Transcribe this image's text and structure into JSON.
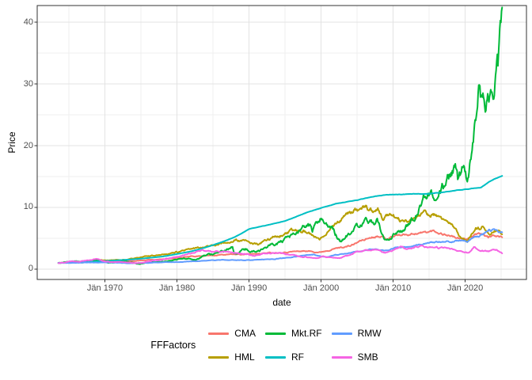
{
  "chart_data": {
    "type": "line",
    "title": "",
    "xlabel": "date",
    "ylabel": "Price",
    "legend_title": "FFFactors",
    "legend_position": "bottom",
    "grid": true,
    "xlim": [
      1960.6,
      2028.5
    ],
    "ylim": [
      -1.67,
      42.7
    ],
    "x_ticks": [
      {
        "year": 1970,
        "label": "Jän 1970"
      },
      {
        "year": 1980,
        "label": "Jän 1980"
      },
      {
        "year": 1990,
        "label": "Jän 1990"
      },
      {
        "year": 2000,
        "label": "Jän 2000"
      },
      {
        "year": 2010,
        "label": "Jän 2010"
      },
      {
        "year": 2020,
        "label": "Jän 2020"
      }
    ],
    "x_minor": [
      1965,
      1975,
      1985,
      1995,
      2005,
      2015,
      2025
    ],
    "y_ticks": [
      {
        "value": 0,
        "label": "0"
      },
      {
        "value": 10,
        "label": "10"
      },
      {
        "value": 20,
        "label": "20"
      },
      {
        "value": 30,
        "label": "30"
      },
      {
        "value": 40,
        "label": "40"
      }
    ],
    "y_minor": [
      5,
      15,
      25,
      35
    ],
    "theme": {
      "background": "#ffffff",
      "panel_background": "#ffffff",
      "panel_border": "#333333",
      "grid_major": "#e3e3e3",
      "grid_minor": "#efefef",
      "tick_color": "#333333",
      "tick_label_color": "#4d4d4d",
      "text_color": "#000000"
    },
    "series": [
      {
        "name": "CMA",
        "color": "#F8766D",
        "noise": 0.02,
        "seed": 11,
        "points": [
          [
            1963.54,
            1.0
          ],
          [
            1966,
            1.1
          ],
          [
            1968,
            1.18
          ],
          [
            1970,
            1.22
          ],
          [
            1972,
            1.32
          ],
          [
            1974,
            1.32
          ],
          [
            1976,
            1.5
          ],
          [
            1978,
            1.62
          ],
          [
            1980,
            1.8
          ],
          [
            1982,
            2.05
          ],
          [
            1984,
            2.2
          ],
          [
            1986,
            2.32
          ],
          [
            1988,
            2.4
          ],
          [
            1990,
            2.42
          ],
          [
            1992,
            2.62
          ],
          [
            1994,
            2.7
          ],
          [
            1996,
            2.85
          ],
          [
            1998,
            2.95
          ],
          [
            1999.8,
            2.75
          ],
          [
            2001,
            3.1
          ],
          [
            2002.5,
            3.5
          ],
          [
            2004,
            3.75
          ],
          [
            2005.5,
            4.6
          ],
          [
            2007,
            5.2
          ],
          [
            2008.2,
            5.5
          ],
          [
            2009,
            4.95
          ],
          [
            2010.4,
            5.5
          ],
          [
            2011.4,
            5.6
          ],
          [
            2013,
            5.8
          ],
          [
            2014.8,
            6.0
          ],
          [
            2015.6,
            6.2
          ],
          [
            2017,
            5.7
          ],
          [
            2018.2,
            5.35
          ],
          [
            2019.5,
            4.8
          ],
          [
            2020.4,
            5.0
          ],
          [
            2021.2,
            5.45
          ],
          [
            2022.3,
            5.7
          ],
          [
            2023.2,
            5.15
          ],
          [
            2024.1,
            5.5
          ],
          [
            2025.15,
            5.15
          ]
        ]
      },
      {
        "name": "HML",
        "color": "#B79F00",
        "noise": 0.028,
        "seed": 22,
        "points": [
          [
            1963.54,
            1.0
          ],
          [
            1966,
            1.2
          ],
          [
            1969,
            1.5
          ],
          [
            1971,
            1.45
          ],
          [
            1973,
            1.55
          ],
          [
            1975,
            1.9
          ],
          [
            1977,
            2.3
          ],
          [
            1979,
            2.6
          ],
          [
            1981,
            2.95
          ],
          [
            1983,
            3.5
          ],
          [
            1984.5,
            3.8
          ],
          [
            1986,
            4.1
          ],
          [
            1988,
            4.65
          ],
          [
            1989.5,
            4.5
          ],
          [
            1991.2,
            3.95
          ],
          [
            1992,
            4.4
          ],
          [
            1993.5,
            5.3
          ],
          [
            1995,
            5.6
          ],
          [
            1996.5,
            6.3
          ],
          [
            1997.5,
            6.4
          ],
          [
            1998.4,
            5.8
          ],
          [
            1999.8,
            4.65
          ],
          [
            2001,
            6.5
          ],
          [
            2002.2,
            7.6
          ],
          [
            2003,
            8.3
          ],
          [
            2004.6,
            9.6
          ],
          [
            2005.5,
            9.3
          ],
          [
            2006.3,
            10.0
          ],
          [
            2007,
            9.4
          ],
          [
            2007.9,
            9.8
          ],
          [
            2008.6,
            7.9
          ],
          [
            2009.5,
            9.0
          ],
          [
            2010.1,
            8.6
          ],
          [
            2011.4,
            7.5
          ],
          [
            2012.2,
            7.8
          ],
          [
            2013.5,
            8.6
          ],
          [
            2014.5,
            9.1
          ],
          [
            2015.6,
            8.8
          ],
          [
            2017,
            8.0
          ],
          [
            2018.2,
            6.9
          ],
          [
            2019.6,
            5.0
          ],
          [
            2020.3,
            4.4
          ],
          [
            2021.4,
            6.8
          ],
          [
            2022,
            6.6
          ],
          [
            2022.5,
            7.1
          ],
          [
            2023.3,
            5.9
          ],
          [
            2024,
            6.3
          ],
          [
            2024.5,
            6.5
          ],
          [
            2025.15,
            5.6
          ]
        ]
      },
      {
        "name": "Mkt.RF",
        "color": "#00BA38",
        "noise": 0.045,
        "seed": 33,
        "points": [
          [
            1963.54,
            1.0
          ],
          [
            1965.9,
            1.25
          ],
          [
            1966.8,
            1.05
          ],
          [
            1968.9,
            1.35
          ],
          [
            1970.5,
            1.0
          ],
          [
            1972.9,
            1.3
          ],
          [
            1974.7,
            0.83
          ],
          [
            1976,
            1.15
          ],
          [
            1978,
            1.2
          ],
          [
            1980.9,
            1.75
          ],
          [
            1982.6,
            1.55
          ],
          [
            1983.5,
            2.1
          ],
          [
            1986,
            2.7
          ],
          [
            1987.7,
            3.3
          ],
          [
            1987.95,
            2.5
          ],
          [
            1989.5,
            3.2
          ],
          [
            1990.8,
            2.85
          ],
          [
            1993,
            3.9
          ],
          [
            1995,
            4.6
          ],
          [
            1997,
            6.1
          ],
          [
            1998.5,
            7.0
          ],
          [
            1998.75,
            6.1
          ],
          [
            2000.2,
            8.5
          ],
          [
            2001,
            6.9
          ],
          [
            2001.75,
            6.0
          ],
          [
            2002.75,
            4.4
          ],
          [
            2004,
            5.9
          ],
          [
            2005.5,
            7.1
          ],
          [
            2007.1,
            7.7
          ],
          [
            2007.75,
            7.9
          ],
          [
            2009.0,
            4.35
          ],
          [
            2010.4,
            6.3
          ],
          [
            2011.4,
            6.2
          ],
          [
            2012.2,
            7.3
          ],
          [
            2013,
            8.6
          ],
          [
            2013.9,
            11.0
          ],
          [
            2014.8,
            12.8
          ],
          [
            2016.2,
            11.8
          ],
          [
            2016.9,
            13.0
          ],
          [
            2018.0,
            14.8
          ],
          [
            2018.7,
            15.8
          ],
          [
            2019.0,
            13.9
          ],
          [
            2019.9,
            17.8
          ],
          [
            2020.25,
            14.8
          ],
          [
            2020.8,
            18.5
          ],
          [
            2021.1,
            20.5
          ],
          [
            2021.95,
            31.5
          ],
          [
            2022.2,
            28.0
          ],
          [
            2022.4,
            29.5
          ],
          [
            2022.75,
            25.3
          ],
          [
            2023.05,
            28.3
          ],
          [
            2023.3,
            26.9
          ],
          [
            2023.6,
            28.8
          ],
          [
            2023.85,
            27.8
          ],
          [
            2024.1,
            31.0
          ],
          [
            2024.4,
            33.5
          ],
          [
            2024.55,
            32.5
          ],
          [
            2024.95,
            38.5
          ],
          [
            2025.15,
            41.0
          ]
        ]
      },
      {
        "name": "RF",
        "color": "#00BFC4",
        "noise": 0.0015,
        "seed": 44,
        "points": [
          [
            1963.54,
            1.0
          ],
          [
            1967,
            1.15
          ],
          [
            1970,
            1.32
          ],
          [
            1974,
            1.6
          ],
          [
            1978,
            2.05
          ],
          [
            1980,
            2.45
          ],
          [
            1982,
            2.9
          ],
          [
            1985,
            3.9
          ],
          [
            1988,
            5.2
          ],
          [
            1990,
            6.5
          ],
          [
            1992,
            7.0
          ],
          [
            1995,
            7.8
          ],
          [
            1998,
            9.2
          ],
          [
            2000,
            9.9
          ],
          [
            2002,
            10.6
          ],
          [
            2005,
            11.2
          ],
          [
            2007,
            11.7
          ],
          [
            2009,
            12.05
          ],
          [
            2012,
            12.15
          ],
          [
            2015,
            12.25
          ],
          [
            2017,
            12.45
          ],
          [
            2019,
            12.8
          ],
          [
            2020.5,
            13.0
          ],
          [
            2022.2,
            13.2
          ],
          [
            2023,
            13.9
          ],
          [
            2024,
            14.6
          ],
          [
            2025.15,
            15.15
          ]
        ]
      },
      {
        "name": "RMW",
        "color": "#619CFF",
        "noise": 0.018,
        "seed": 55,
        "points": [
          [
            1963.54,
            1.0
          ],
          [
            1966,
            1.05
          ],
          [
            1970,
            1.1
          ],
          [
            1974,
            0.95
          ],
          [
            1978,
            1.1
          ],
          [
            1982,
            1.25
          ],
          [
            1986,
            1.5
          ],
          [
            1990,
            1.45
          ],
          [
            1994,
            1.7
          ],
          [
            1997,
            2.1
          ],
          [
            1999,
            2.4
          ],
          [
            2000.7,
            1.9
          ],
          [
            2002,
            2.3
          ],
          [
            2004.6,
            2.8
          ],
          [
            2007,
            3.2
          ],
          [
            2008.9,
            2.95
          ],
          [
            2010.4,
            3.5
          ],
          [
            2013,
            3.8
          ],
          [
            2014.8,
            4.2
          ],
          [
            2016,
            4.4
          ],
          [
            2017.5,
            4.45
          ],
          [
            2019.5,
            4.7
          ],
          [
            2020.3,
            4.45
          ],
          [
            2021,
            5.0
          ],
          [
            2022,
            5.4
          ],
          [
            2022.7,
            5.7
          ],
          [
            2023.3,
            6.5
          ],
          [
            2023.6,
            6.2
          ],
          [
            2024.2,
            6.5
          ],
          [
            2024.6,
            6.1
          ],
          [
            2025.15,
            5.9
          ]
        ]
      },
      {
        "name": "SMB",
        "color": "#F564E3",
        "noise": 0.025,
        "seed": 66,
        "points": [
          [
            1963.54,
            1.0
          ],
          [
            1965.5,
            1.3
          ],
          [
            1966.5,
            1.25
          ],
          [
            1968.9,
            1.65
          ],
          [
            1970.7,
            1.15
          ],
          [
            1972,
            1.25
          ],
          [
            1974.7,
            0.95
          ],
          [
            1976.5,
            1.35
          ],
          [
            1978,
            1.55
          ],
          [
            1980.5,
            2.2
          ],
          [
            1983.5,
            3.1
          ],
          [
            1985,
            2.75
          ],
          [
            1987,
            2.95
          ],
          [
            1988,
            2.65
          ],
          [
            1990.8,
            2.2
          ],
          [
            1992,
            2.6
          ],
          [
            1994,
            2.65
          ],
          [
            1996,
            2.3
          ],
          [
            1998,
            2.0
          ],
          [
            1999.7,
            1.75
          ],
          [
            2000.3,
            2.0
          ],
          [
            2001,
            1.9
          ],
          [
            2002.7,
            1.8
          ],
          [
            2004.6,
            2.6
          ],
          [
            2006,
            3.0
          ],
          [
            2007.5,
            3.1
          ],
          [
            2008.9,
            2.6
          ],
          [
            2010.4,
            3.3
          ],
          [
            2011.2,
            3.6
          ],
          [
            2012,
            3.3
          ],
          [
            2013.8,
            3.8
          ],
          [
            2014.8,
            3.6
          ],
          [
            2016.9,
            3.4
          ],
          [
            2018.5,
            3.2
          ],
          [
            2019.7,
            2.9
          ],
          [
            2020.3,
            2.6
          ],
          [
            2021.2,
            3.5
          ],
          [
            2022.5,
            3.0
          ],
          [
            2023.5,
            2.95
          ],
          [
            2024.3,
            3.1
          ],
          [
            2025.15,
            2.65
          ]
        ]
      }
    ]
  }
}
